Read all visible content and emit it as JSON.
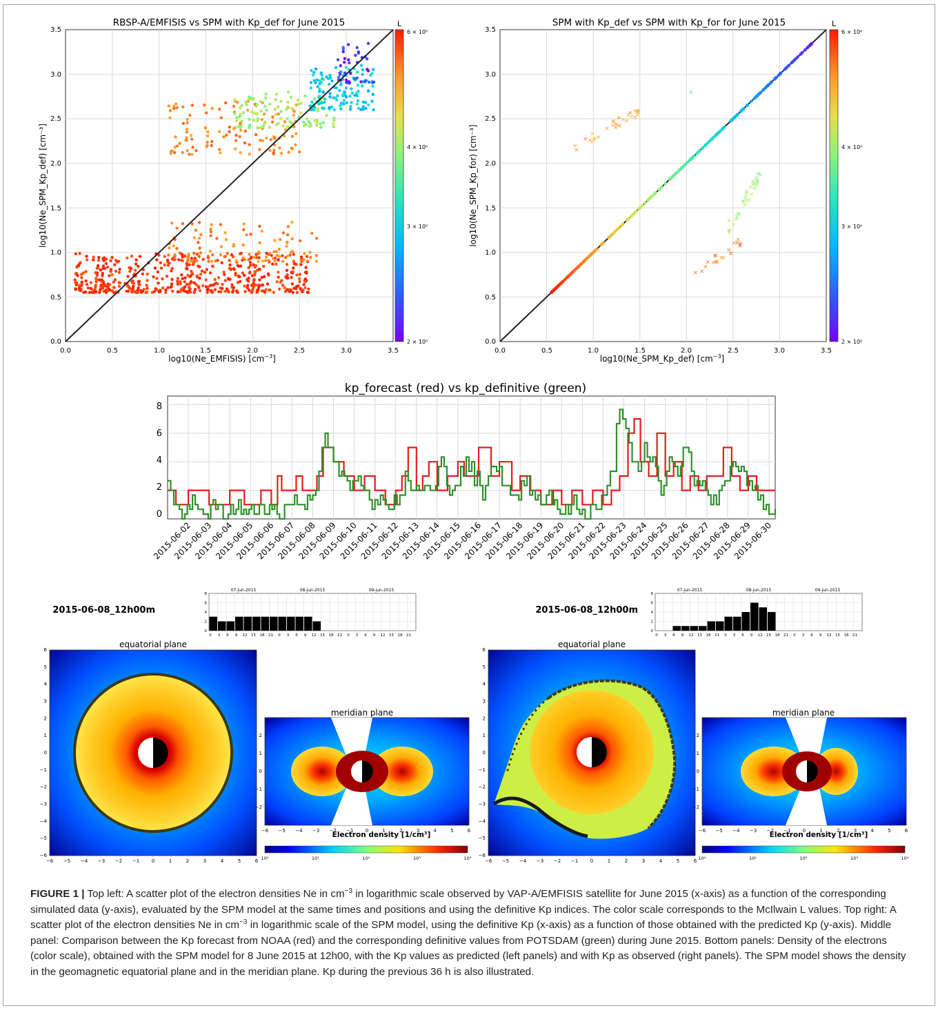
{
  "figure": {
    "label": "FIGURE 1 |",
    "caption_parts": [
      "Top left: A scatter plot of the electron densities Ne in cm",
      "−3",
      " in logarithmic scale observed by VAP-A/EMFISIS satellite for June 2015 (x-axis) as a function of the corresponding simulated data (y-axis), evaluated by the SPM model at the same times and positions and using the definitive Kp indices. The color scale corresponds to the McIlwain L values. Top right: A scatter plot of the electron densities Ne in cm",
      "−3",
      " in logarithmic scale of the SPM model, using the definitive Kp (x-axis) as a function of those obtained with the predicted Kp (y-axis). Middle panel: Comparison between the Kp forecast from NOAA (red) and the corresponding definitive values from POTSDAM (green) during June 2015. Bottom panels: Density of the electrons (color scale), obtained with the SPM model for 8 June 2015 at 12h00, with the Kp values as predicted (left panels) and with Kp as observed (right panels). The SPM model shows the density in the geomagnetic equatorial plane and in the meridian plane. Kp during the previous 36 h is also illustrated."
    ]
  },
  "panels": {
    "scatter_left": {
      "title": "RBSP-A/EMFISIS vs SPM with Kp_def for June 2015",
      "xlabel_main": "log10(Ne_EMFISIS) [cm",
      "ylabel": "log10(Ne_SPM_Kp_def) [cm⁻³]",
      "colorbar_label": "L"
    },
    "scatter_right": {
      "title": "SPM with Kp_def vs SPM with Kp_for for June 2015",
      "xlabel_main": "log10(Ne_SPM_Kp_def) [cm",
      "ylabel": "log10(Ne_SPM_Kp_for) [cm⁻³]",
      "colorbar_label": "L"
    },
    "superscript": "−3",
    "axis_tail": "]",
    "scatter_ticks": [
      "0.0",
      "0.5",
      "1.0",
      "1.5",
      "2.0",
      "2.5",
      "3.0",
      "3.5"
    ],
    "colorbar_ticks": [
      "6 × 10⁰",
      "4 × 10⁰",
      "3 × 10⁰",
      "2 × 10⁰"
    ],
    "kp_plot": {
      "title": "kp_forecast (red) vs kp_definitive (green)",
      "y_ticks": [
        "0",
        "2",
        "4",
        "6",
        "8"
      ],
      "x_ticks": [
        "2015-06-02",
        "2015-06-03",
        "2015-06-04",
        "2015-06-05",
        "2015-06-06",
        "2015-06-07",
        "2015-06-08",
        "2015-06-09",
        "2015-06-10",
        "2015-06-11",
        "2015-06-12",
        "2015-06-13",
        "2015-06-14",
        "2015-06-15",
        "2015-06-16",
        "2015-06-17",
        "2015-06-18",
        "2015-06-19",
        "2015-06-20",
        "2015-06-21",
        "2015-06-22",
        "2015-06-23",
        "2015-06-24",
        "2015-06-25",
        "2015-06-26",
        "2015-06-27",
        "2015-06-28",
        "2015-06-29",
        "2015-06-30"
      ]
    },
    "sim_left": {
      "timestamp": "2015-06-08_12h00m",
      "equatorial_title": "equatorial plane",
      "meridian_title": "meridian plane",
      "density_label": "Electron density [1/cm³]"
    },
    "sim_right": {
      "timestamp": "2015-06-08_12h00m",
      "equatorial_title": "equatorial plane",
      "meridian_title": "meridian plane",
      "density_label": "Electron density [1/cm³]"
    },
    "mini_dates": [
      "07-jun-2015",
      "08-jun-2015",
      "09-jun-2015"
    ],
    "mini_hours": [
      "0",
      "3",
      "6",
      "9",
      "12",
      "15",
      "18",
      "21",
      "0",
      "3",
      "6",
      "9",
      "12",
      "15",
      "18",
      "21",
      "0",
      "3",
      "6",
      "9",
      "12",
      "15",
      "18",
      "21"
    ],
    "mini_y": [
      "8",
      "6",
      "4",
      "2",
      "0"
    ],
    "eq_ticks": [
      "−6",
      "−5",
      "−4",
      "−3",
      "−2",
      "−1",
      "0",
      "1",
      "2",
      "3",
      "4",
      "5",
      "6"
    ],
    "mer_x_ticks": [
      "−6",
      "−5",
      "−4",
      "−3",
      "−2",
      "−1",
      "0",
      "1",
      "2",
      "3",
      "4",
      "5",
      "6"
    ],
    "mer_y_ticks": [
      "2",
      "1",
      "0",
      "−1",
      "−2"
    ],
    "density_ticks": [
      "10⁰",
      "10¹",
      "10²",
      "10³",
      "10⁴"
    ]
  },
  "chart_data": [
    {
      "type": "scatter",
      "title": "RBSP-A/EMFISIS vs SPM with Kp_def for June 2015",
      "xlabel": "log10(Ne_EMFISIS) [cm−3]",
      "ylabel": "log10(Ne_SPM_Kp_def) [cm⁻³]",
      "xlim": [
        0,
        3.5
      ],
      "ylim": [
        0,
        3.5
      ],
      "grid": true,
      "colorbar": {
        "label": "L",
        "range": [
          2,
          6
        ],
        "scale": "log",
        "colormap": "rainbow"
      },
      "reference_line": {
        "x": [
          0,
          3.5
        ],
        "y": [
          0,
          3.5
        ]
      },
      "clusters": [
        {
          "x_range": [
            0.1,
            2.6
          ],
          "y_range": [
            0.55,
            1.0
          ],
          "L_approx": 5.8
        },
        {
          "x_range": [
            1.1,
            2.7
          ],
          "y_range": [
            0.9,
            1.35
          ],
          "L_approx": 5.2
        },
        {
          "x_range": [
            1.1,
            2.5
          ],
          "y_range": [
            2.1,
            2.7
          ],
          "L_approx": 5.2
        },
        {
          "x_range": [
            1.8,
            2.9
          ],
          "y_range": [
            2.4,
            2.8
          ],
          "L_approx": 4.0
        },
        {
          "x_range": [
            2.6,
            3.3
          ],
          "y_range": [
            2.6,
            3.1
          ],
          "L_approx": 3.0
        },
        {
          "x_range": [
            2.9,
            3.3
          ],
          "y_range": [
            2.9,
            3.35
          ],
          "L_approx": 2.2
        }
      ]
    },
    {
      "type": "scatter",
      "title": "SPM with Kp_def vs SPM with Kp_for for June 2015",
      "xlabel": "log10(Ne_SPM_Kp_def) [cm−3]",
      "ylabel": "log10(Ne_SPM_Kp_for) [cm⁻³]",
      "xlim": [
        0,
        3.5
      ],
      "ylim": [
        0,
        3.5
      ],
      "grid": true,
      "colorbar": {
        "label": "L",
        "range": [
          2,
          6
        ],
        "scale": "log",
        "colormap": "rainbow"
      },
      "reference_line": {
        "x": [
          0,
          3.5
        ],
        "y": [
          0,
          3.5
        ]
      },
      "diagonal_points": {
        "x_range": [
          0.55,
          3.35
        ],
        "L_from": 6.0,
        "L_to": 2.1
      },
      "off_diagonal_clusters": [
        {
          "x_range": [
            0.75,
            1.5
          ],
          "y_range": [
            2.1,
            2.65
          ],
          "L_approx": 5.0
        },
        {
          "x_range": [
            2.05,
            2.6
          ],
          "y_range": [
            0.65,
            1.2
          ],
          "L_approx": 5.4
        },
        {
          "x_range": [
            2.45,
            2.8
          ],
          "y_range": [
            1.2,
            1.95
          ],
          "L_approx": 4.0
        },
        {
          "x": 2.05,
          "y": 2.8,
          "L_approx": 3.5
        }
      ]
    },
    {
      "type": "line",
      "title": "kp_forecast (red) vs kp_definitive (green)",
      "ylim": [
        0,
        8.6
      ],
      "grid": true,
      "x_unit": "days since 2015-06-01 00:00",
      "xlim_days": [
        0,
        29.3
      ],
      "series": [
        {
          "name": "kp_forecast",
          "color": "#e41a1c",
          "x": [
            0,
            0.4,
            1.0,
            2.0,
            3.0,
            3.7,
            4.5,
            5.0,
            5.3,
            5.5,
            6.2,
            6.5,
            7.2,
            7.5,
            8.0,
            8.5,
            9.0,
            9.5,
            10.0,
            10.5,
            11.0,
            11.3,
            11.6,
            12.0,
            12.3,
            12.6,
            13.0,
            13.5,
            14.0,
            14.3,
            15.0,
            15.6,
            16.0,
            16.6,
            17.0,
            17.5,
            18.0,
            18.6,
            19.0,
            19.5,
            20.0,
            20.5,
            21.0,
            21.4,
            21.8,
            22.2,
            22.5,
            22.8,
            23.2,
            23.6,
            24.0,
            24.4,
            24.8,
            25.2,
            25.6,
            26.0,
            26.4,
            26.8,
            27.2,
            27.6,
            28.0,
            28.4,
            28.8,
            29.3
          ],
          "y": [
            2,
            1,
            2,
            1,
            2,
            1,
            2,
            1,
            3,
            2,
            3,
            2,
            3,
            5,
            4,
            3,
            2,
            3,
            2,
            1,
            2,
            3,
            5,
            2,
            3,
            4,
            2,
            3,
            4,
            3,
            5,
            3,
            4,
            2,
            3,
            2,
            1,
            2,
            1,
            2,
            1,
            2,
            1,
            2,
            3,
            6,
            7,
            4,
            3,
            6,
            3,
            4,
            2,
            3,
            2,
            3,
            3,
            5,
            3,
            2,
            3,
            2,
            2,
            2
          ]
        },
        {
          "name": "kp_definitive",
          "color": "#2ca02c",
          "x": [
            0,
            0.3,
            0.7,
            1.2,
            1.6,
            2.2,
            2.8,
            3.3,
            3.8,
            4.3,
            4.8,
            5.4,
            6.0,
            6.5,
            7.0,
            7.3,
            7.6,
            8.0,
            8.4,
            8.8,
            9.2,
            9.6,
            10.0,
            10.4,
            10.8,
            11.2,
            11.6,
            12.0,
            12.4,
            12.8,
            13.2,
            13.6,
            14.0,
            14.4,
            14.8,
            15.2,
            15.6,
            16.0,
            16.4,
            16.8,
            17.2,
            17.6,
            18.0,
            18.4,
            18.8,
            19.2,
            19.6,
            20.0,
            20.4,
            20.8,
            21.2,
            21.5,
            21.8,
            22.1,
            22.4,
            22.7,
            23.0,
            23.4,
            23.8,
            24.2,
            24.6,
            25.0,
            25.4,
            25.8,
            26.2,
            26.6,
            27.0,
            27.4,
            27.8,
            28.2,
            28.6,
            29.0,
            29.3
          ],
          "y": [
            3,
            1,
            0.3,
            1,
            0.3,
            0.7,
            0.3,
            1,
            0.3,
            0.7,
            1,
            0.3,
            1.3,
            1,
            2,
            3,
            6,
            4,
            3,
            2,
            3,
            2,
            1,
            2,
            1,
            2,
            3,
            2,
            3,
            2,
            4,
            2,
            3,
            4,
            3,
            2,
            4,
            3,
            2,
            1,
            3,
            2,
            1,
            2,
            1,
            0.3,
            1,
            0.3,
            0.7,
            1,
            2,
            4,
            8.3,
            6,
            4,
            3,
            5,
            4,
            2,
            4,
            3,
            5.7,
            2,
            3,
            1,
            2,
            3,
            4,
            3,
            2,
            1.3,
            1,
            0.7
          ]
        }
      ]
    },
    {
      "type": "bar",
      "title": "2015-06-08_12h00m",
      "note": "Kp over previous 36 h (left simulation, forecast Kp)",
      "values": [
        3,
        2,
        2,
        3,
        3,
        3,
        3,
        3,
        3,
        3,
        3,
        3,
        2
      ],
      "ylim": [
        0,
        8
      ]
    },
    {
      "type": "bar",
      "title": "2015-06-08_12h00m",
      "note": "Kp over previous 36 h (right simulation, observed Kp)",
      "values": [
        0,
        0,
        1,
        1,
        1,
        1,
        2,
        2,
        3,
        3,
        4,
        6,
        5,
        4
      ],
      "ylim": [
        0,
        8
      ]
    }
  ]
}
